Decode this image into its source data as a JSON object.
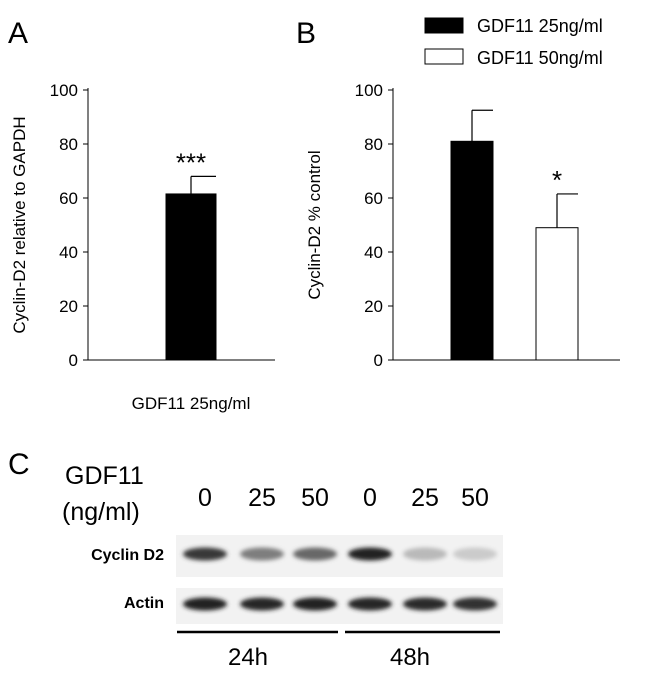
{
  "panels": {
    "a": "A",
    "b": "B",
    "c": "C"
  },
  "chart_data": [
    {
      "panel": "A",
      "type": "bar",
      "categories": [
        "GDF11 25ng/ml"
      ],
      "values": [
        61.5
      ],
      "errors": [
        6.5
      ],
      "significance": [
        "***"
      ],
      "ylabel": "Cyclin-D2 relative to GAPDH",
      "ylim": [
        0,
        100
      ],
      "yticks": [
        "0",
        "20",
        "40",
        "60",
        "80",
        "100"
      ],
      "color": "#000000"
    },
    {
      "panel": "B",
      "type": "bar",
      "categories": [
        "GDF11 25ng/ml",
        "GDF11 50ng/ml"
      ],
      "values": [
        81,
        49
      ],
      "errors": [
        11.5,
        12.5
      ],
      "significance": [
        "",
        "*"
      ],
      "ylabel": "Cyclin-D2 % control",
      "ylim": [
        0,
        100
      ],
      "yticks": [
        "0",
        "20",
        "40",
        "60",
        "80",
        "100"
      ],
      "colors": [
        "#000000",
        "#ffffff"
      ],
      "legend": [
        "GDF11 25ng/ml",
        "GDF11 50ng/ml"
      ],
      "legend_position": "top-right"
    }
  ],
  "blot": {
    "header_line1": "GDF11",
    "header_line2": "(ng/ml)",
    "doses": [
      "0",
      "25",
      "50",
      "0",
      "25",
      "50"
    ],
    "rows": [
      {
        "label": "Cyclin D2",
        "intensities": [
          0.85,
          0.55,
          0.65,
          0.95,
          0.3,
          0.22
        ]
      },
      {
        "label": "Actin",
        "intensities": [
          0.95,
          0.92,
          0.95,
          0.92,
          0.9,
          0.88
        ]
      }
    ],
    "timepoints": [
      "24h",
      "48h"
    ]
  }
}
